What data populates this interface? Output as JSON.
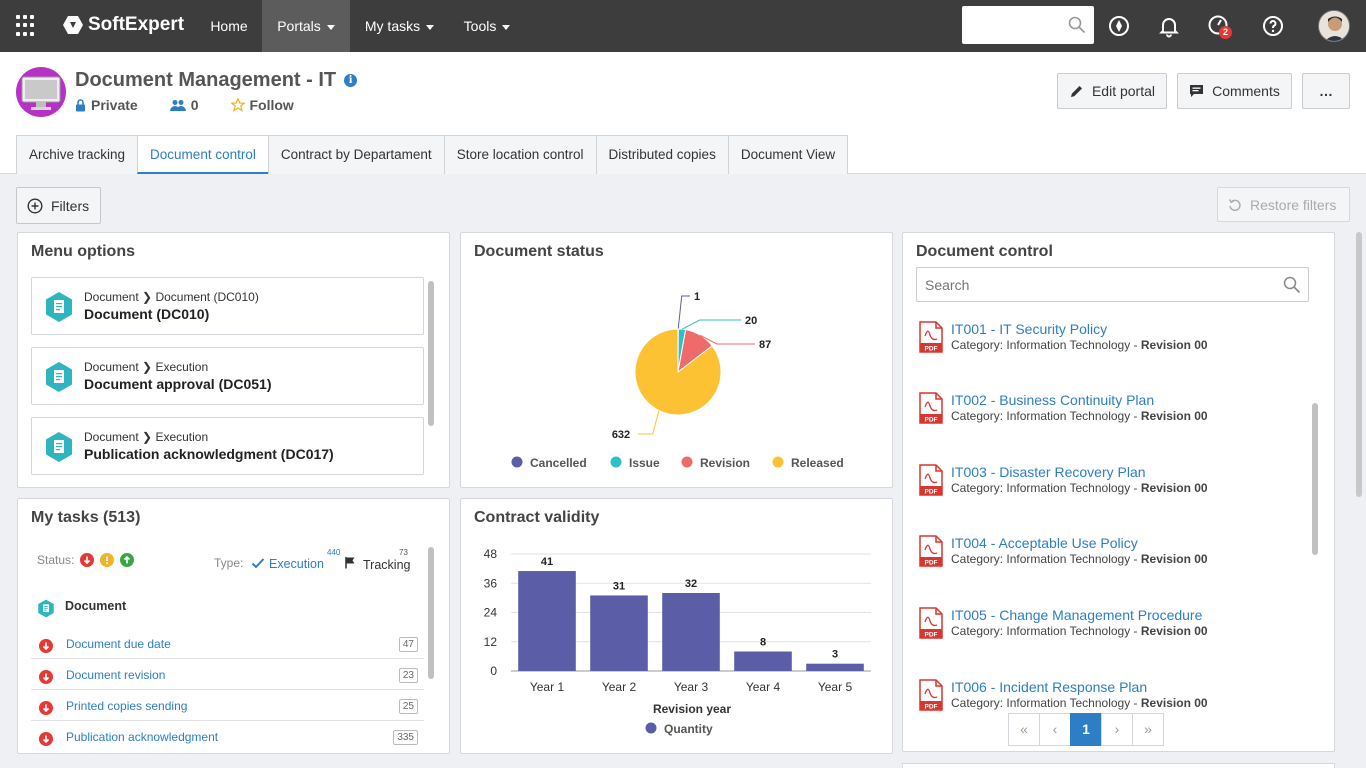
{
  "topbar": {
    "brand": "SoftExpert",
    "nav": [
      {
        "label": "Home"
      },
      {
        "label": "Portals"
      },
      {
        "label": "My tasks"
      },
      {
        "label": "Tools"
      }
    ],
    "notification_badge": "2"
  },
  "portal": {
    "title": "Document Management - IT",
    "visibility": "Private",
    "members": "0",
    "follow": "Follow",
    "edit_label": "Edit portal",
    "comments_label": "Comments",
    "more_label": "…"
  },
  "tabs": [
    {
      "label": "Archive tracking"
    },
    {
      "label": "Document control"
    },
    {
      "label": "Contract by Departament"
    },
    {
      "label": "Store location control"
    },
    {
      "label": "Distributed copies"
    },
    {
      "label": "Document View"
    }
  ],
  "toolbar": {
    "filters_label": "Filters",
    "restore_label": "Restore filters"
  },
  "menu_options": {
    "title": "Menu options",
    "items": [
      {
        "path_root": "Document",
        "path_leaf": "Document (DC010)",
        "name": "Document (DC010)"
      },
      {
        "path_root": "Document",
        "path_leaf": "Execution",
        "name": "Document approval (DC051)"
      },
      {
        "path_root": "Document",
        "path_leaf": "Execution",
        "name": "Publication acknowledgment (DC017)"
      }
    ]
  },
  "my_tasks": {
    "title": "My tasks (513)",
    "status_label": "Status:",
    "type_label": "Type:",
    "execution_label": "Execution",
    "execution_count": "440",
    "tracking_label": "Tracking",
    "tracking_count": "73",
    "group_label": "Document",
    "tasks": [
      {
        "name": "Document due date",
        "count": "47"
      },
      {
        "name": "Document revision",
        "count": "23"
      },
      {
        "name": "Printed copies sending",
        "count": "25"
      },
      {
        "name": "Publication acknowledgment",
        "count": "335"
      }
    ]
  },
  "chart_data": [
    {
      "type": "pie",
      "title": "Document status",
      "categories": [
        "Cancelled",
        "Issue",
        "Revision",
        "Released"
      ],
      "values": [
        1,
        20,
        87,
        632
      ],
      "colors": [
        "#5b5ea6",
        "#2fbfc5",
        "#ef6b6b",
        "#fdc134"
      ],
      "legend": "bottom"
    },
    {
      "type": "bar",
      "title": "Contract validity",
      "categories": [
        "Year 1",
        "Year 2",
        "Year 3",
        "Year 4",
        "Year 5"
      ],
      "series": [
        {
          "name": "Quantity",
          "values": [
            41,
            31,
            32,
            8,
            3
          ]
        }
      ],
      "xlabel": "Revision year",
      "ylabel": "",
      "ylim": [
        0,
        48
      ],
      "yticks": [
        "48",
        "36",
        "24",
        "12",
        "0"
      ],
      "color": "#5b5ea6",
      "grid": true,
      "legend": "bottom"
    }
  ],
  "document_control": {
    "title": "Document control",
    "search_placeholder": "Search",
    "items": [
      {
        "title": "IT001 - IT Security Policy",
        "category": "Category: Information Technology - ",
        "revision": "Revision 00"
      },
      {
        "title": "IT002 - Business Continuity Plan",
        "category": "Category: Information Technology - ",
        "revision": "Revision 00"
      },
      {
        "title": "IT003 - Disaster Recovery Plan",
        "category": "Category: Information Technology - ",
        "revision": "Revision 00"
      },
      {
        "title": "IT004 - Acceptable Use Policy",
        "category": "Category: Information Technology - ",
        "revision": "Revision 00"
      },
      {
        "title": "IT005 - Change Management Procedure",
        "category": "Category: Information Technology - ",
        "revision": "Revision 00"
      },
      {
        "title": "IT006 - Incident Response Plan",
        "category": "Category: Information Technology - ",
        "revision": "Revision 00"
      }
    ],
    "pager": {
      "first": "«",
      "prev": "‹",
      "current": "1",
      "next": "›",
      "last": "»"
    }
  }
}
